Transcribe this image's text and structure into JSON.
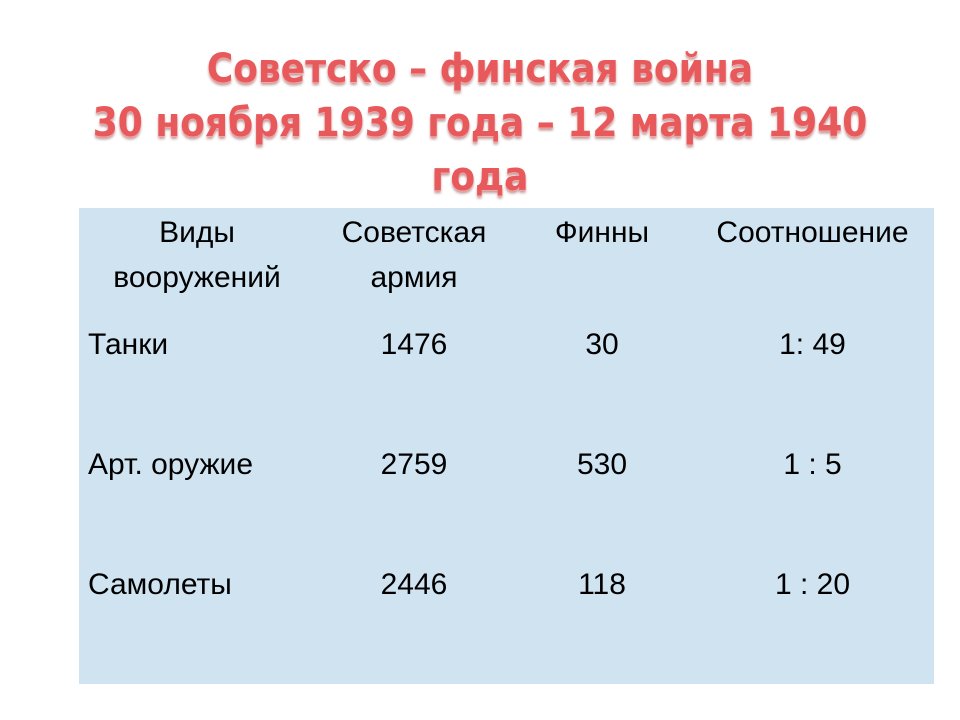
{
  "title": {
    "line1": "Советско – финская война",
    "line2": "30 ноября 1939 года – 12 марта 1940 года",
    "color": "#e8595b"
  },
  "table": {
    "background": "#cfe3f1",
    "headers": [
      "Виды вооружений",
      "Советская армия",
      "Финны",
      "Соотношение"
    ],
    "rows": [
      {
        "type": "Танки",
        "soviet": "1476",
        "finns": "30",
        "ratio": "1: 49"
      },
      {
        "type": "Арт. оружие",
        "soviet": "2759",
        "finns": "530",
        "ratio": "1 : 5"
      },
      {
        "type": "Самолеты",
        "soviet": "2446",
        "finns": "118",
        "ratio": "1 : 20"
      }
    ]
  }
}
